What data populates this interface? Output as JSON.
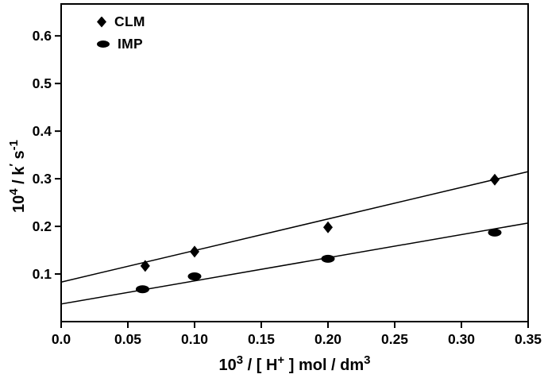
{
  "figure": {
    "background": "#ffffff",
    "axis_color": "#000000",
    "marker_color": "#000000",
    "line_color": "#000000"
  },
  "chart_data": {
    "type": "scatter",
    "title": "",
    "xlabel": "10³ / [ H⁺ ] mol / dm³",
    "ylabel": "10⁴ / k′ s⁻¹",
    "xlabel_parts": [
      {
        "text": "10"
      },
      {
        "text": "3",
        "sup": true
      },
      {
        "text": " / [ H"
      },
      {
        "text": "+",
        "sup": true
      },
      {
        "text": " ] mol / dm"
      },
      {
        "text": "3",
        "sup": true
      }
    ],
    "ylabel_parts": [
      {
        "text": "10"
      },
      {
        "text": "4",
        "sup": true
      },
      {
        "text": " / k"
      },
      {
        "text": "′",
        "sup": true
      },
      {
        "text": " s"
      },
      {
        "text": "-1",
        "sup": true
      }
    ],
    "xlim": [
      0,
      0.35
    ],
    "ylim": [
      0,
      0.667
    ],
    "x_ticks": [
      0.0,
      0.05,
      0.1,
      0.15,
      0.2,
      0.25,
      0.3,
      0.35
    ],
    "x_tick_labels": [
      "0.0",
      "0.05",
      "0.10",
      "0.15",
      "0.20",
      "0.25",
      "0.30",
      "0.35"
    ],
    "y_ticks": [
      0.1,
      0.2,
      0.3,
      0.4,
      0.5,
      0.6
    ],
    "y_tick_labels": [
      "0.1",
      "0.2",
      "0.3",
      "0.4",
      "0.5",
      "0.6"
    ],
    "grid": false,
    "legend": {
      "position": "upper-left-inside",
      "items": [
        "CLM",
        "IMP"
      ]
    },
    "series": [
      {
        "name": "CLM",
        "marker": "diamond",
        "color": "#000000",
        "x": [
          0.063,
          0.1,
          0.2,
          0.325
        ],
        "y": [
          0.117,
          0.147,
          0.198,
          0.298
        ],
        "fit_line": {
          "x": [
            0,
            0.35
          ],
          "y": [
            0.083,
            0.315
          ]
        }
      },
      {
        "name": "IMP",
        "marker": "ellipse",
        "color": "#000000",
        "x": [
          0.061,
          0.1,
          0.2,
          0.325
        ],
        "y": [
          0.068,
          0.095,
          0.132,
          0.187
        ],
        "fit_line": {
          "x": [
            0,
            0.35
          ],
          "y": [
            0.037,
            0.207
          ]
        }
      }
    ]
  }
}
